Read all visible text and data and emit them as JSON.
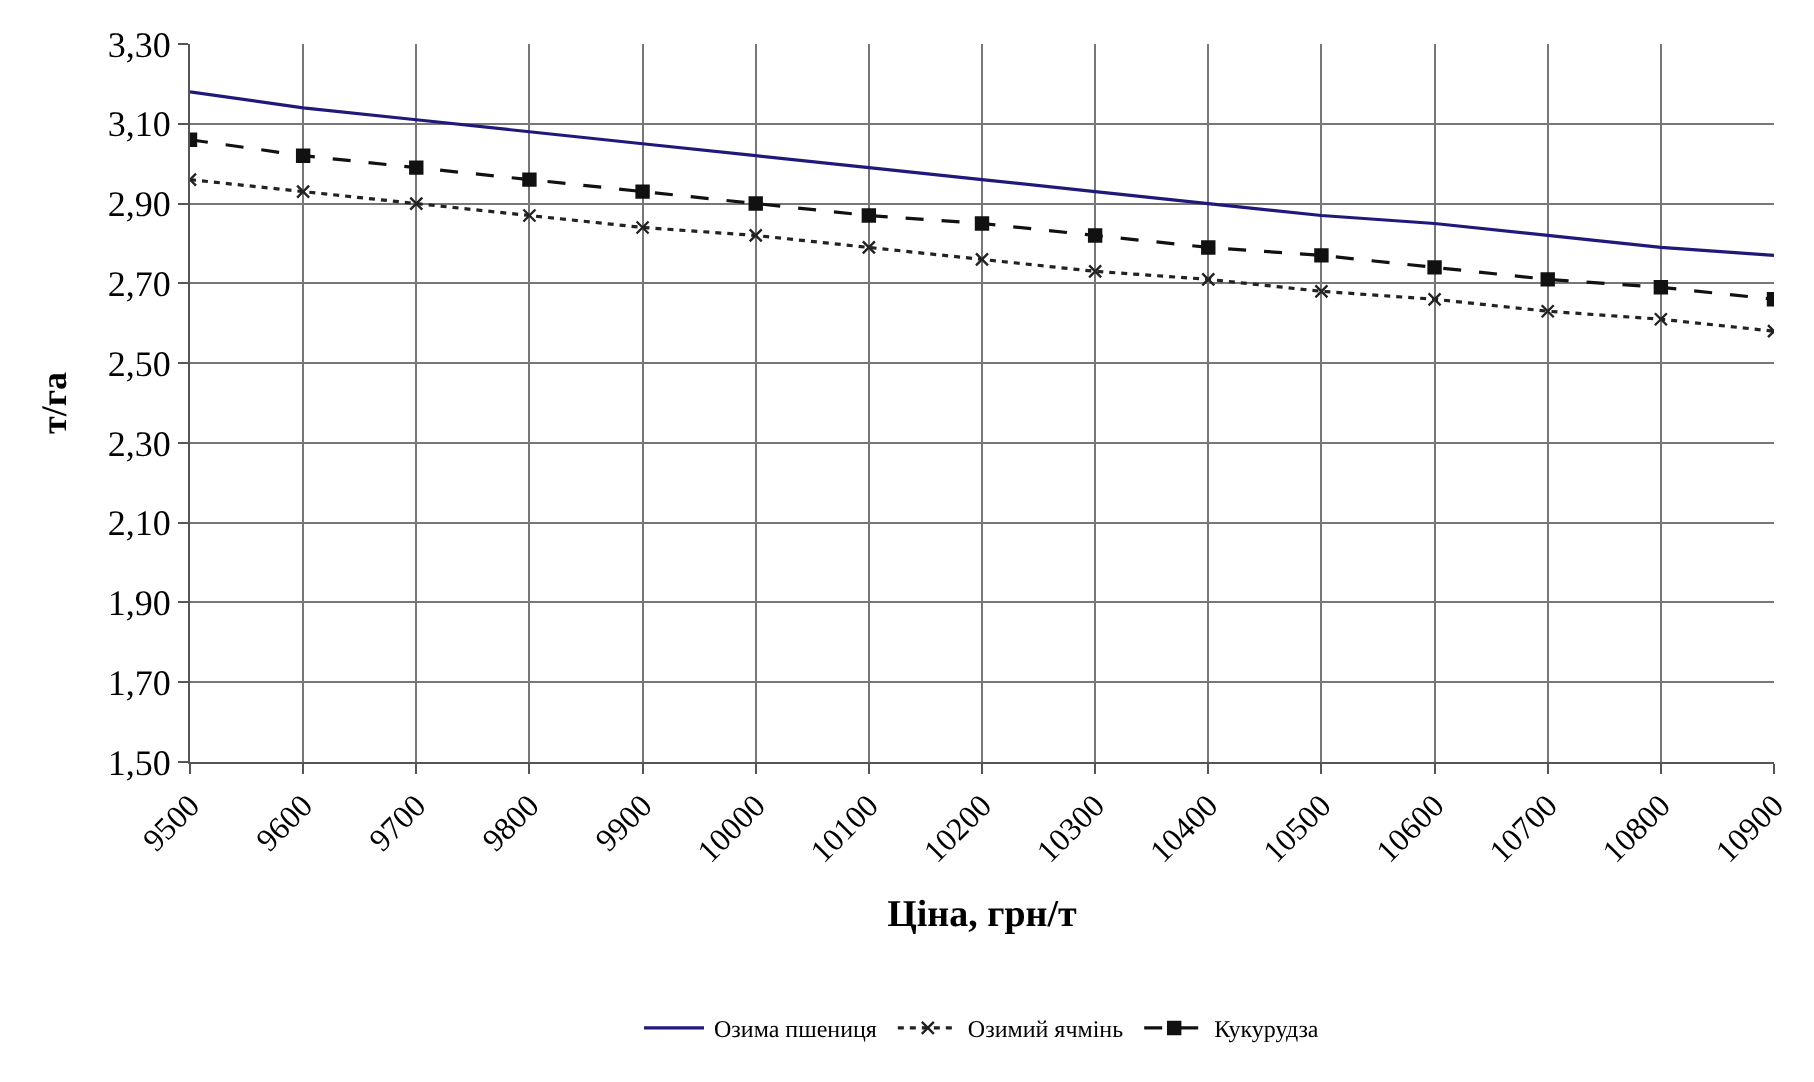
{
  "chart_data": {
    "type": "line",
    "xlabel": "Ціна, грн/т",
    "ylabel": "т/га",
    "categories": [
      "9500",
      "9600",
      "9700",
      "9800",
      "9900",
      "10000",
      "10100",
      "10200",
      "10300",
      "10400",
      "10500",
      "10600",
      "10700",
      "10800",
      "10900"
    ],
    "ylim": [
      1.5,
      3.3
    ],
    "yticks": [
      {
        "value": 1.5,
        "label": "1,50"
      },
      {
        "value": 1.7,
        "label": "1,70"
      },
      {
        "value": 1.9,
        "label": "1,90"
      },
      {
        "value": 2.1,
        "label": "2,10"
      },
      {
        "value": 2.3,
        "label": "2,30"
      },
      {
        "value": 2.5,
        "label": "2,50"
      },
      {
        "value": 2.7,
        "label": "2,70"
      },
      {
        "value": 2.9,
        "label": "2,90"
      },
      {
        "value": 3.1,
        "label": "3,10"
      },
      {
        "value": 3.3,
        "label": "3,30"
      }
    ],
    "grid": true,
    "legend": "bottom",
    "series": [
      {
        "name": "Озима пшениця",
        "color": "#1f1a7a",
        "line_style": "solid",
        "marker": "none",
        "values": [
          3.18,
          3.14,
          3.11,
          3.08,
          3.05,
          3.02,
          2.99,
          2.96,
          2.93,
          2.9,
          2.87,
          2.85,
          2.82,
          2.79,
          2.77
        ]
      },
      {
        "name": "Озимий ячмінь",
        "color": "#222222",
        "line_style": "dotted",
        "marker": "cross",
        "values": [
          2.96,
          2.93,
          2.9,
          2.87,
          2.84,
          2.82,
          2.79,
          2.76,
          2.73,
          2.71,
          2.68,
          2.66,
          2.63,
          2.61,
          2.58
        ]
      },
      {
        "name": "Кукурудза",
        "color": "#111111",
        "line_style": "dashed",
        "marker": "square",
        "values": [
          3.06,
          3.02,
          2.99,
          2.96,
          2.93,
          2.9,
          2.87,
          2.85,
          2.82,
          2.79,
          2.77,
          2.74,
          2.71,
          2.69,
          2.66
        ]
      }
    ]
  }
}
